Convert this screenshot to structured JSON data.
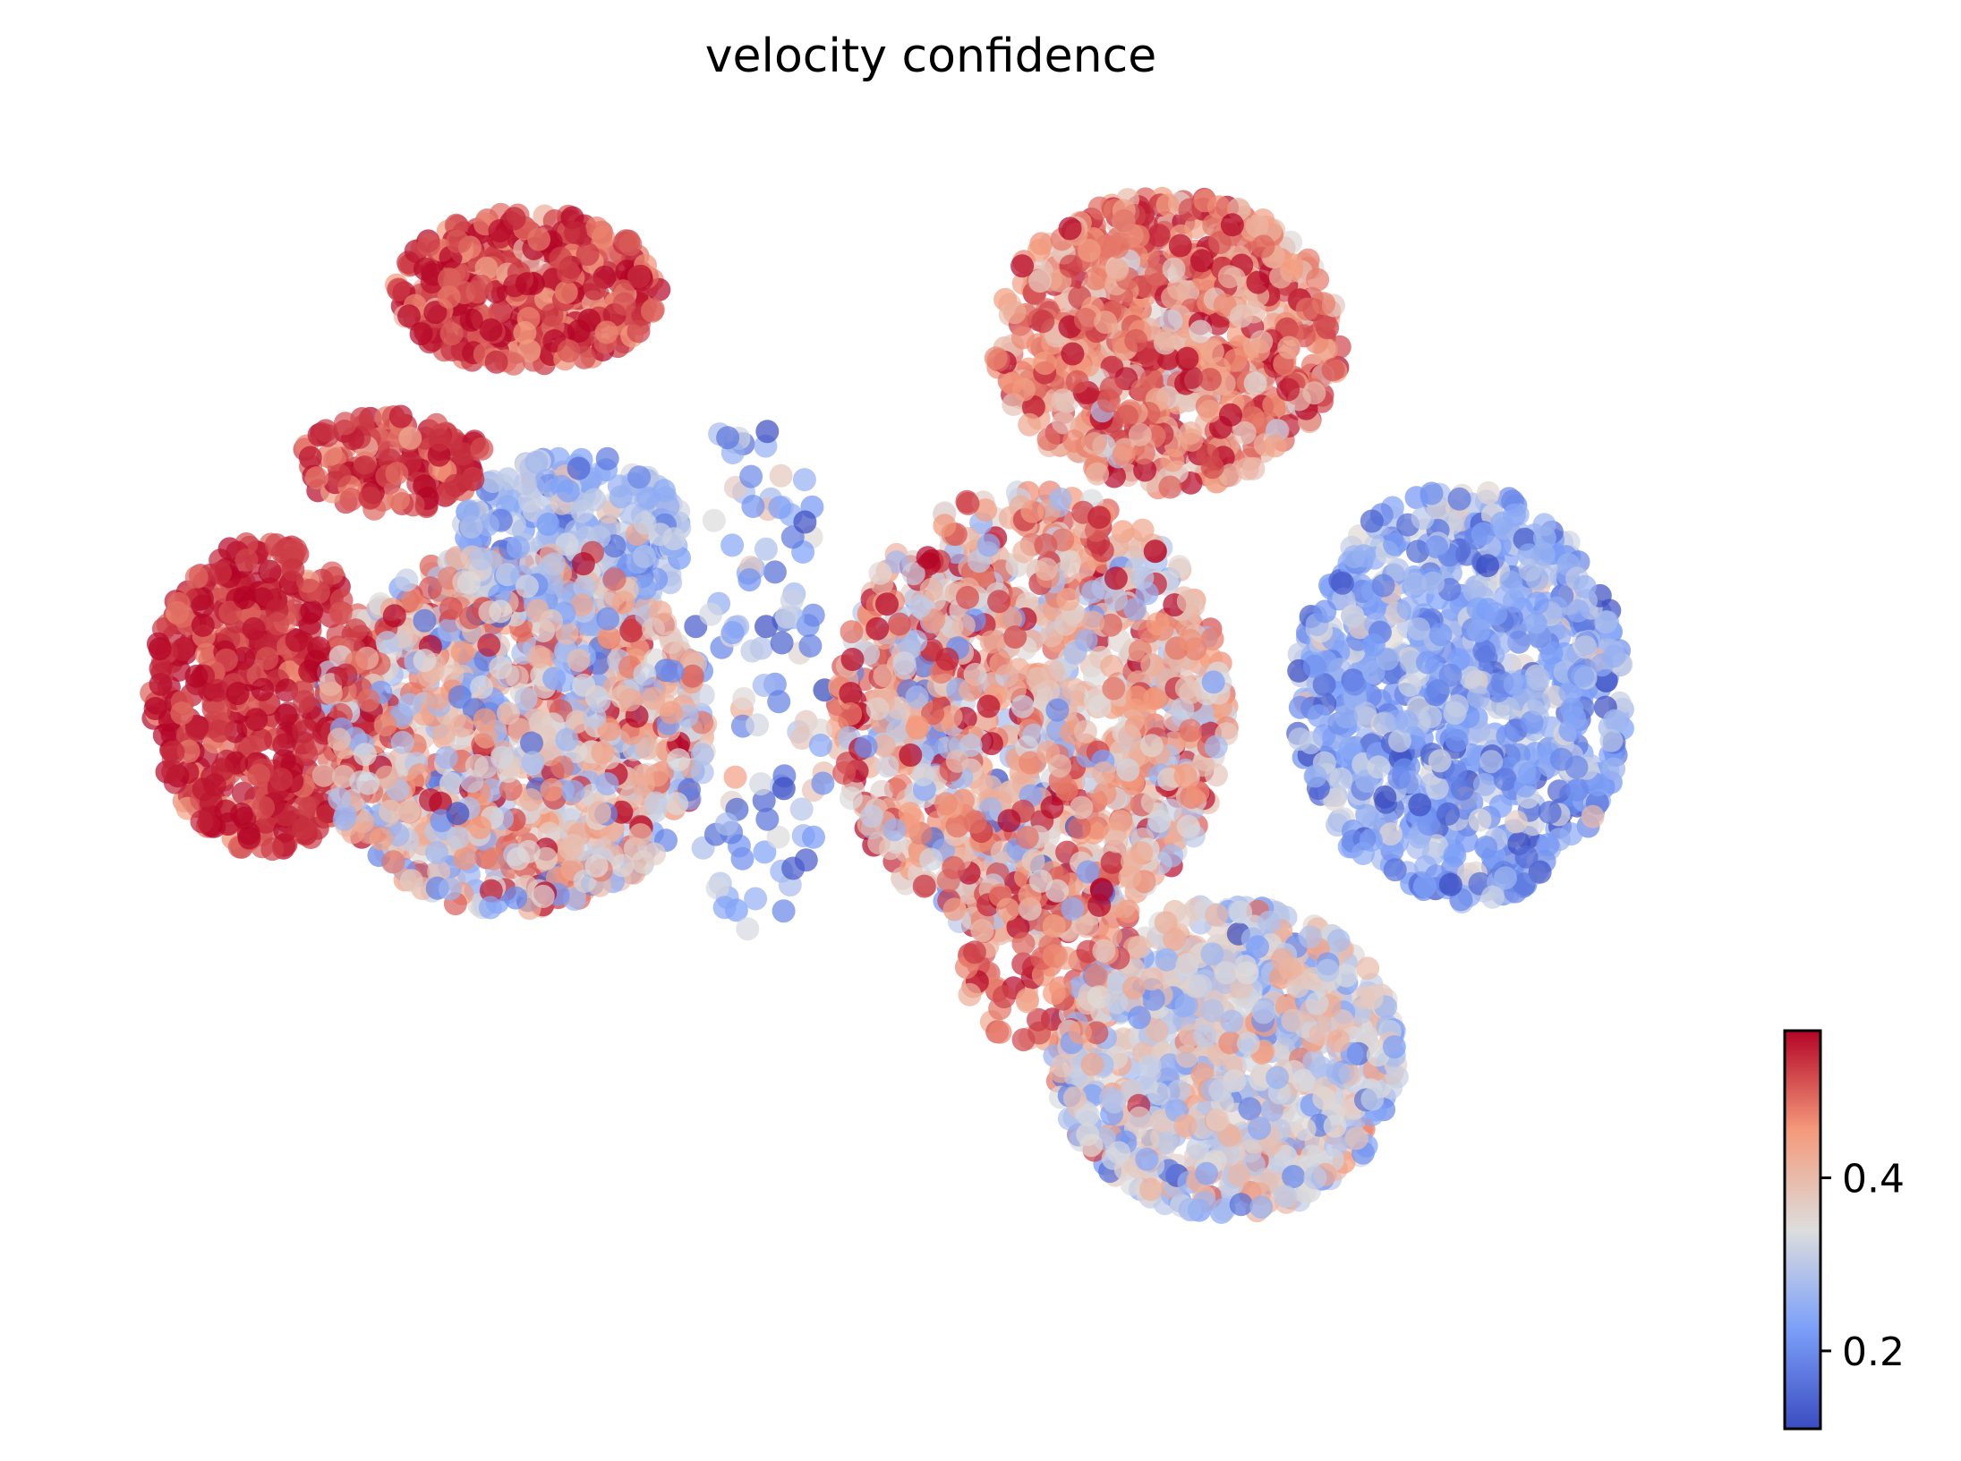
{
  "chart_data": {
    "type": "scatter",
    "title": "velocity confidence",
    "colormap": "coolwarm",
    "color_low": "#3b4cc0",
    "color_mid": "#dddddd",
    "color_high": "#b40426",
    "axes_visible": false,
    "grid": false,
    "point_alpha": 0.7,
    "colorbar": {
      "placement": "bottom-right",
      "range": [
        0.11,
        0.57
      ],
      "ticks": [
        {
          "value": 0.2,
          "label": "0.2"
        },
        {
          "value": 0.4,
          "label": "0.4"
        }
      ]
    },
    "clusters": [
      {
        "name": "top-left-red",
        "cx": -4.8,
        "cy": 6.3,
        "rx": 1.75,
        "ry": 0.9,
        "n": 420,
        "mean": 0.52,
        "sd": 0.05
      },
      {
        "name": "left-bridge",
        "cx": -6.6,
        "cy": 4.3,
        "rx": 1.25,
        "ry": 0.55,
        "n": 140,
        "mean": 0.53,
        "sd": 0.04
      },
      {
        "name": "left-red-core",
        "cx": -8.3,
        "cy": 1.6,
        "rx": 1.5,
        "ry": 1.8,
        "n": 540,
        "mean": 0.54,
        "sd": 0.04
      },
      {
        "name": "left-mixed",
        "cx": -5.0,
        "cy": 1.2,
        "rx": 2.6,
        "ry": 2.1,
        "n": 1100,
        "mean": 0.38,
        "sd": 0.11
      },
      {
        "name": "left-blue-upper",
        "cx": -4.2,
        "cy": 3.4,
        "rx": 1.5,
        "ry": 1.0,
        "n": 320,
        "mean": 0.27,
        "sd": 0.06
      },
      {
        "name": "scatter-gap",
        "cx": -1.8,
        "cy": 1.8,
        "rx": 1.0,
        "ry": 3.2,
        "n": 110,
        "mean": 0.24,
        "sd": 0.08
      },
      {
        "name": "top-right-red",
        "cx": 3.7,
        "cy": 5.7,
        "rx": 2.3,
        "ry": 1.7,
        "n": 820,
        "mean": 0.47,
        "sd": 0.07
      },
      {
        "name": "center-mixed",
        "cx": 1.9,
        "cy": 1.4,
        "rx": 2.6,
        "ry": 2.6,
        "n": 1250,
        "mean": 0.41,
        "sd": 0.1
      },
      {
        "name": "right-blue",
        "cx": 7.6,
        "cy": 1.6,
        "rx": 2.2,
        "ry": 2.4,
        "n": 950,
        "mean": 0.24,
        "sd": 0.06
      },
      {
        "name": "bottom-mixed",
        "cx": 4.5,
        "cy": -2.6,
        "rx": 2.3,
        "ry": 1.8,
        "n": 920,
        "mean": 0.33,
        "sd": 0.07
      },
      {
        "name": "bottom-center-red",
        "cx": 2.1,
        "cy": -1.3,
        "rx": 1.2,
        "ry": 1.2,
        "n": 120,
        "mean": 0.48,
        "sd": 0.06
      }
    ],
    "xlim": [
      -10.5,
      11.5
    ],
    "ylim": [
      -6.5,
      8.0
    ]
  }
}
